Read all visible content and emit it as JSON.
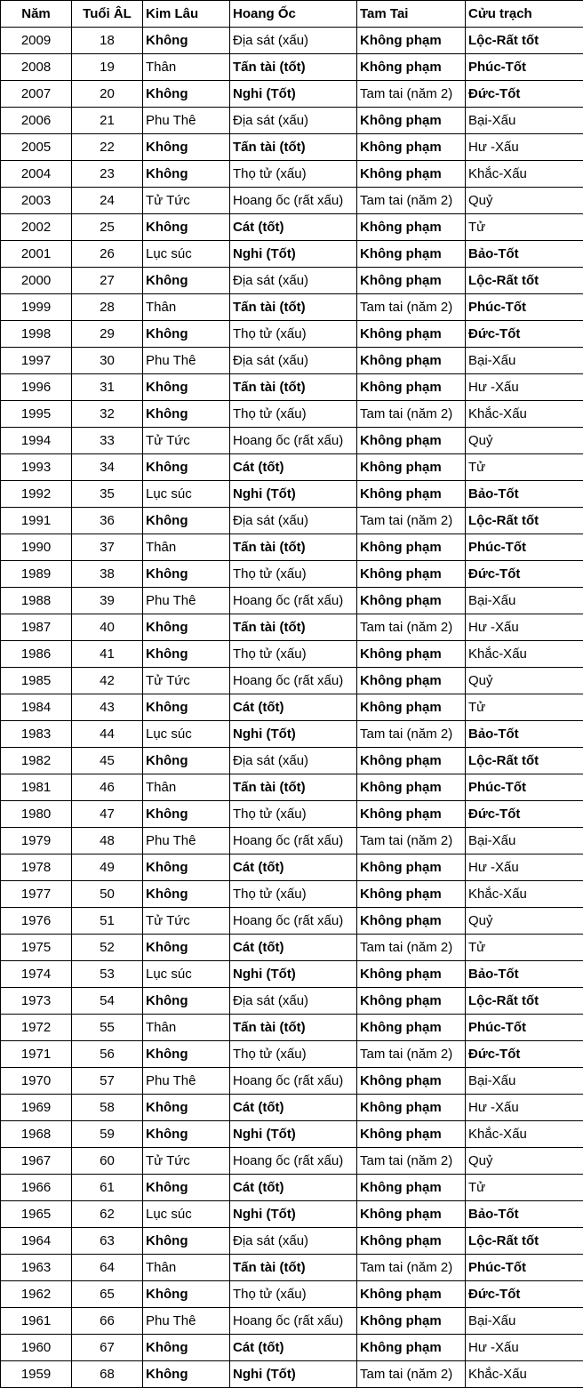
{
  "table": {
    "headers": [
      "Năm",
      "Tuổi ÂL",
      "Kim Lâu",
      "Hoang Ốc",
      "Tam Tai",
      "Cửu trạch"
    ],
    "rows": [
      [
        "2009",
        "18",
        "Không",
        "Địa sát (xấu)",
        "Không phạm",
        "Lộc-Rất tốt"
      ],
      [
        "2008",
        "19",
        "Thân",
        "Tấn tài (tốt)",
        "Không phạm",
        "Phúc-Tốt"
      ],
      [
        "2007",
        "20",
        "Không",
        "Nghi (Tốt)",
        "Tam tai (năm 2)",
        "Đức-Tốt"
      ],
      [
        "2006",
        "21",
        "Phu Thê",
        "Địa sát (xấu)",
        "Không phạm",
        "Bại-Xấu"
      ],
      [
        "2005",
        "22",
        "Không",
        "Tấn tài (tốt)",
        "Không phạm",
        "Hư -Xấu"
      ],
      [
        "2004",
        "23",
        "Không",
        "Thọ tử (xấu)",
        "Không phạm",
        "Khắc-Xấu"
      ],
      [
        "2003",
        "24",
        "Tử Tức",
        "Hoang ốc (rất xấu)",
        "Tam tai (năm 2)",
        "Quỷ"
      ],
      [
        "2002",
        "25",
        "Không",
        "Cát (tốt)",
        "Không phạm",
        "Tử"
      ],
      [
        "2001",
        "26",
        "Lục súc",
        "Nghi (Tốt)",
        "Không phạm",
        "Bảo-Tốt"
      ],
      [
        "2000",
        "27",
        "Không",
        "Địa sát (xấu)",
        "Không phạm",
        "Lộc-Rất tốt"
      ],
      [
        "1999",
        "28",
        "Thân",
        "Tấn tài (tốt)",
        "Tam tai (năm 2)",
        "Phúc-Tốt"
      ],
      [
        "1998",
        "29",
        "Không",
        "Thọ tử (xấu)",
        "Không phạm",
        "Đức-Tốt"
      ],
      [
        "1997",
        "30",
        "Phu Thê",
        "Địa sát (xấu)",
        "Không phạm",
        "Bại-Xấu"
      ],
      [
        "1996",
        "31",
        "Không",
        "Tấn tài (tốt)",
        "Không phạm",
        "Hư -Xấu"
      ],
      [
        "1995",
        "32",
        "Không",
        "Thọ tử (xấu)",
        "Tam tai (năm 2)",
        "Khắc-Xấu"
      ],
      [
        "1994",
        "33",
        "Tử Tức",
        "Hoang ốc (rất xấu)",
        "Không phạm",
        "Quỷ"
      ],
      [
        "1993",
        "34",
        "Không",
        "Cát (tốt)",
        "Không phạm",
        "Tử"
      ],
      [
        "1992",
        "35",
        "Lục súc",
        "Nghi (Tốt)",
        "Không phạm",
        "Bảo-Tốt"
      ],
      [
        "1991",
        "36",
        "Không",
        "Địa sát (xấu)",
        "Tam tai (năm 2)",
        "Lộc-Rất tốt"
      ],
      [
        "1990",
        "37",
        "Thân",
        "Tấn tài (tốt)",
        "Không phạm",
        "Phúc-Tốt"
      ],
      [
        "1989",
        "38",
        "Không",
        "Thọ tử (xấu)",
        "Không phạm",
        "Đức-Tốt"
      ],
      [
        "1988",
        "39",
        "Phu Thê",
        "Hoang ốc (rất xấu)",
        "Không phạm",
        "Bại-Xấu"
      ],
      [
        "1987",
        "40",
        "Không",
        "Tấn tài (tốt)",
        "Tam tai (năm 2)",
        "Hư -Xấu"
      ],
      [
        "1986",
        "41",
        "Không",
        "Thọ tử (xấu)",
        "Không phạm",
        "Khắc-Xấu"
      ],
      [
        "1985",
        "42",
        "Tử Tức",
        "Hoang ốc (rất xấu)",
        "Không phạm",
        "Quỷ"
      ],
      [
        "1984",
        "43",
        "Không",
        "Cát (tốt)",
        "Không phạm",
        "Tử"
      ],
      [
        "1983",
        "44",
        "Lục súc",
        "Nghi (Tốt)",
        "Tam tai (năm 2)",
        "Bảo-Tốt"
      ],
      [
        "1982",
        "45",
        "Không",
        "Địa sát (xấu)",
        "Không phạm",
        "Lộc-Rất tốt"
      ],
      [
        "1981",
        "46",
        "Thân",
        "Tấn tài (tốt)",
        "Không phạm",
        "Phúc-Tốt"
      ],
      [
        "1980",
        "47",
        "Không",
        "Thọ tử (xấu)",
        "Không phạm",
        "Đức-Tốt"
      ],
      [
        "1979",
        "48",
        "Phu Thê",
        "Hoang ốc (rất xấu)",
        "Tam tai (năm 2)",
        "Bại-Xấu"
      ],
      [
        "1978",
        "49",
        "Không",
        "Cát (tốt)",
        "Không phạm",
        "Hư -Xấu"
      ],
      [
        "1977",
        "50",
        "Không",
        "Thọ tử (xấu)",
        "Không phạm",
        "Khắc-Xấu"
      ],
      [
        "1976",
        "51",
        "Tử Tức",
        "Hoang ốc (rất xấu)",
        "Không phạm",
        "Quỷ"
      ],
      [
        "1975",
        "52",
        "Không",
        "Cát (tốt)",
        "Tam tai (năm 2)",
        "Tử"
      ],
      [
        "1974",
        "53",
        "Lục súc",
        "Nghi (Tốt)",
        "Không phạm",
        "Bảo-Tốt"
      ],
      [
        "1973",
        "54",
        "Không",
        "Địa sát (xấu)",
        "Không phạm",
        "Lộc-Rất tốt"
      ],
      [
        "1972",
        "55",
        "Thân",
        "Tấn tài (tốt)",
        "Không phạm",
        "Phúc-Tốt"
      ],
      [
        "1971",
        "56",
        "Không",
        "Thọ tử (xấu)",
        "Tam tai (năm 2)",
        "Đức-Tốt"
      ],
      [
        "1970",
        "57",
        "Phu Thê",
        "Hoang ốc (rất xấu)",
        "Không phạm",
        "Bại-Xấu"
      ],
      [
        "1969",
        "58",
        "Không",
        "Cát (tốt)",
        "Không phạm",
        "Hư -Xấu"
      ],
      [
        "1968",
        "59",
        "Không",
        "Nghi (Tốt)",
        "Không phạm",
        "Khắc-Xấu"
      ],
      [
        "1967",
        "60",
        "Tử Tức",
        "Hoang ốc (rất xấu)",
        "Tam tai (năm 2)",
        "Quỷ"
      ],
      [
        "1966",
        "61",
        "Không",
        "Cát (tốt)",
        "Không phạm",
        "Tử"
      ],
      [
        "1965",
        "62",
        "Lục súc",
        "Nghi (Tốt)",
        "Không phạm",
        "Bảo-Tốt"
      ],
      [
        "1964",
        "63",
        "Không",
        "Địa sát (xấu)",
        "Không phạm",
        "Lộc-Rất tốt"
      ],
      [
        "1963",
        "64",
        "Thân",
        "Tấn tài (tốt)",
        "Tam tai (năm 2)",
        "Phúc-Tốt"
      ],
      [
        "1962",
        "65",
        "Không",
        "Thọ tử (xấu)",
        "Không phạm",
        "Đức-Tốt"
      ],
      [
        "1961",
        "66",
        "Phu Thê",
        "Hoang ốc (rất xấu)",
        "Không phạm",
        "Bại-Xấu"
      ],
      [
        "1960",
        "67",
        "Không",
        "Cát (tốt)",
        "Không phạm",
        "Hư -Xấu"
      ],
      [
        "1959",
        "68",
        "Không",
        "Nghi (Tốt)",
        "Tam tai (năm 2)",
        "Khắc-Xấu"
      ]
    ]
  }
}
